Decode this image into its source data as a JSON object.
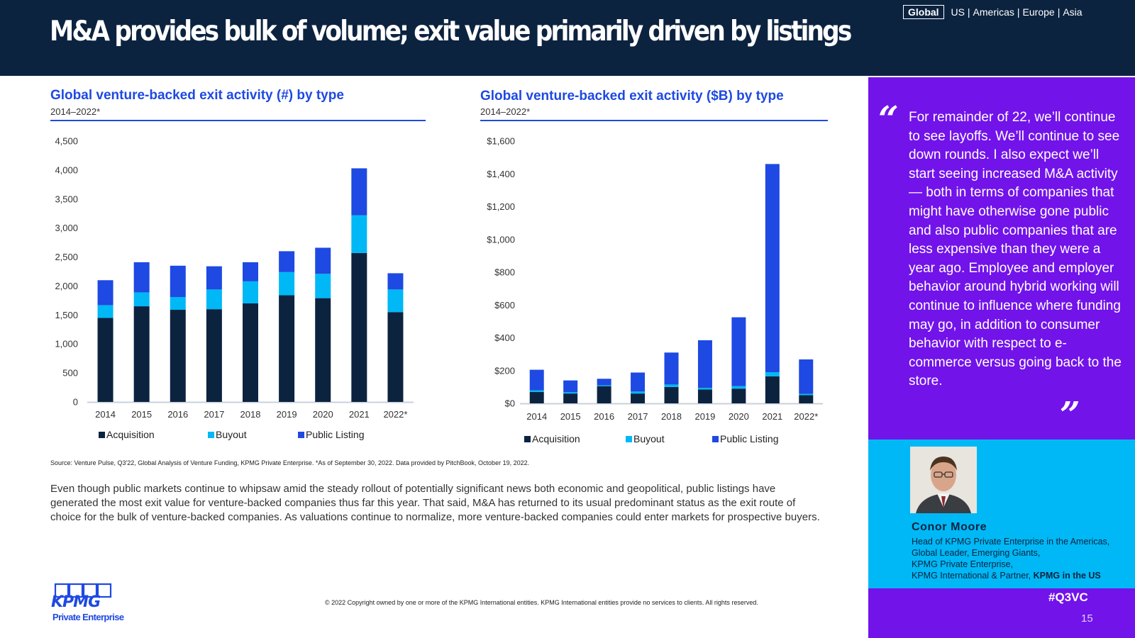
{
  "header": {
    "title": "M&A provides bulk of volume; exit value primarily driven by listings",
    "regions": {
      "active": "Global",
      "others": [
        "US",
        "Americas",
        "Europe",
        "Asia"
      ]
    }
  },
  "colors": {
    "acquisition": "#0c2340",
    "buyout": "#00b8f5",
    "public_listing": "#1e49e2",
    "header_bg": "#0c2340",
    "panel_bg": "#7213ea",
    "accent_cyan": "#00b8f5"
  },
  "chart_data": [
    {
      "type": "bar",
      "stacked": true,
      "title": "Global venture-backed exit activity (#) by type",
      "subtitle": "2014–2022*",
      "categories": [
        "2014",
        "2015",
        "2016",
        "2017",
        "2018",
        "2019",
        "2020",
        "2021",
        "2022*"
      ],
      "series": [
        {
          "name": "Acquisition",
          "values": [
            1450,
            1650,
            1590,
            1600,
            1700,
            1840,
            1790,
            2570,
            1550
          ]
        },
        {
          "name": "Buyout",
          "values": [
            220,
            240,
            220,
            340,
            380,
            400,
            420,
            650,
            390
          ]
        },
        {
          "name": "Public Listing",
          "values": [
            430,
            520,
            540,
            400,
            330,
            360,
            450,
            810,
            280
          ]
        }
      ],
      "ylim": [
        0,
        4500
      ],
      "yticks": [
        "4,500",
        "4,000",
        "3,500",
        "3,000",
        "2,500",
        "2,000",
        "1,500",
        "1,000",
        "500",
        "0"
      ],
      "grid": false,
      "legend": "bottom"
    },
    {
      "type": "bar",
      "stacked": true,
      "title": "Global venture-backed exit activity ($B) by type",
      "subtitle": "2014–2022*",
      "categories": [
        "2014",
        "2015",
        "2016",
        "2017",
        "2018",
        "2019",
        "2020",
        "2021",
        "2022*"
      ],
      "series": [
        {
          "name": "Acquisition",
          "values": [
            70,
            60,
            105,
            60,
            100,
            85,
            90,
            165,
            50
          ]
        },
        {
          "name": "Buyout",
          "values": [
            10,
            8,
            5,
            12,
            15,
            10,
            15,
            25,
            8
          ]
        },
        {
          "name": "Public Listing",
          "values": [
            125,
            72,
            40,
            116,
            195,
            290,
            420,
            1270,
            210
          ]
        }
      ],
      "ylim": [
        0,
        1600
      ],
      "yticks": [
        "$1,600",
        "$1,400",
        "$1,200",
        "$1,000",
        "$800",
        "$600",
        "$400",
        "$200",
        "$0"
      ],
      "grid": false,
      "legend": "bottom"
    }
  ],
  "source": "Source: Venture Pulse, Q3'22, Global Analysis of Venture Funding, KPMG Private Enterprise. *As of September 30, 2022. Data provided by PitchBook, October 19, 2022.",
  "body_text": "Even though public markets continue to whipsaw amid the steady rollout of potentially significant news both economic and geopolitical, public listings have generated the most exit value for venture-backed companies thus far this year. That said, M&A has returned to its usual predominant status as the exit route of choice for the bulk of venture-backed companies. As valuations continue to normalize, more venture-backed companies could enter markets for prospective buyers.",
  "quote": {
    "text": "For remainder of 22, we’ll continue to see layoffs. We’ll continue to see down rounds. I also expect we’ll start seeing increased M&A activity — both in terms of companies that might have otherwise gone public and also public companies that are less expensive than they were a year ago. Employee and employer behavior around hybrid working will continue to influence where funding may go, in addition to consumer behavior with respect to e-commerce versus going back to the store.",
    "open_mark": "“",
    "close_mark": "”"
  },
  "person": {
    "name": "Conor Moore",
    "role_lines": [
      "Head of KPMG Private Enterprise in the Americas,",
      "Global Leader, Emerging Giants,",
      "KPMG Private Enterprise,"
    ],
    "role_last": "KPMG International & Partner,",
    "role_org": "KPMG in the US"
  },
  "hashtag": "#Q3VC",
  "page_number": "15",
  "logo": {
    "wordmark": "KPMG",
    "tagline": "Private Enterprise"
  },
  "copyright": "© 2022 Copyright owned by one or more of the KPMG International entities. KPMG International entities provide no services to clients. All rights reserved."
}
